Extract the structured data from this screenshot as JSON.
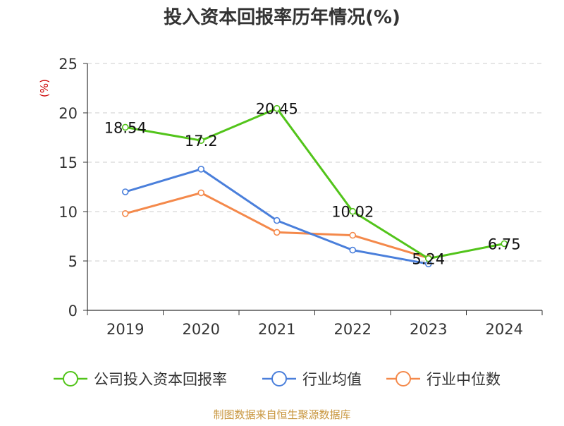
{
  "chart_data": {
    "type": "line",
    "title": "投入资本回报率历年情况(%)",
    "ylabel": "(%)",
    "xlabel": "",
    "categories": [
      "2019",
      "2020",
      "2021",
      "2022",
      "2023",
      "2024"
    ],
    "ylim": [
      0,
      25
    ],
    "yticks": [
      0,
      5,
      10,
      15,
      20,
      25
    ],
    "grid": true,
    "legend_position": "bottom",
    "series": [
      {
        "name": "公司投入资本回报率",
        "color": "#52c41a",
        "values": [
          18.54,
          17.2,
          20.45,
          10.02,
          5.24,
          6.75
        ],
        "labels": [
          "18.54",
          "17.2",
          "20.45",
          "10.02",
          "5.24",
          "6.75"
        ]
      },
      {
        "name": "行业均值",
        "color": "#4a7fdb",
        "values": [
          12.0,
          14.3,
          9.1,
          6.1,
          4.7,
          null
        ]
      },
      {
        "name": "行业中位数",
        "color": "#f4894b",
        "values": [
          9.8,
          11.9,
          7.9,
          7.6,
          5.3,
          null
        ]
      }
    ],
    "source": "制图数据来自恒生聚源数据库"
  },
  "colors": {
    "title": "#333333",
    "axis": "#333333",
    "grid": "#cccccc",
    "ylabel": "#cc0000",
    "source": "#c8963e"
  }
}
